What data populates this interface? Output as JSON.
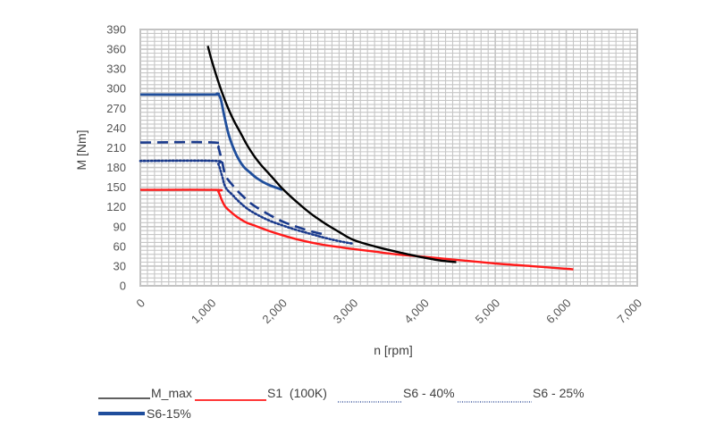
{
  "chart_data": {
    "type": "line",
    "title": "",
    "xlabel": "n [rpm]",
    "ylabel": "M [Nm]",
    "xlim": [
      0,
      7000
    ],
    "ylim": [
      0,
      390
    ],
    "x_ticks": [
      "0",
      "1,000",
      "2,000",
      "3,000",
      "4,000",
      "5,000",
      "6,000",
      "7,000"
    ],
    "y_ticks": [
      "0",
      "30",
      "60",
      "90",
      "120",
      "150",
      "180",
      "210",
      "240",
      "270",
      "300",
      "330",
      "360",
      "390"
    ],
    "grid": true,
    "legend_position": "bottom",
    "series": [
      {
        "name": "M_max",
        "color": "#000000",
        "style": "solid",
        "x": [
          950,
          1000,
          1100,
          1200,
          1300,
          1400,
          1500,
          1600,
          1700,
          1800,
          1900,
          2000,
          2200,
          2400,
          2600,
          2800,
          3000,
          3300,
          3600,
          3900,
          4200,
          4450
        ],
        "y": [
          365,
          345,
          310,
          280,
          255,
          235,
          215,
          198,
          184,
          172,
          160,
          148,
          128,
          110,
          95,
          82,
          70,
          60,
          52,
          45,
          39,
          36
        ]
      },
      {
        "name": "S1  (100K)",
        "color": "#ff1a1a",
        "style": "solid",
        "x": [
          0,
          1050,
          1100,
          1150,
          1200,
          1300,
          1400,
          1500,
          1600,
          1800,
          2000,
          2200,
          2400,
          2600,
          2800,
          3000,
          3300,
          3600,
          4000,
          4500,
          5000,
          5500,
          6000,
          6100
        ],
        "y": [
          146,
          146,
          143,
          130,
          120,
          110,
          102,
          96,
          92,
          84,
          77,
          71,
          66,
          62,
          59,
          56,
          52,
          48,
          44,
          39,
          34,
          30,
          26,
          25
        ]
      },
      {
        "name": "S6 - 40%",
        "color": "#1a3a8c",
        "style": "dotted",
        "x": [
          0,
          1050,
          1100,
          1150,
          1200,
          1300,
          1400,
          1500,
          1600,
          1800,
          2000,
          2200,
          2400,
          2600,
          2800,
          3000
        ],
        "y": [
          190,
          190,
          185,
          168,
          150,
          138,
          127,
          118,
          111,
          100,
          92,
          85,
          79,
          73,
          68,
          64
        ]
      },
      {
        "name": "S6 - 25%",
        "color": "#1a3a8c",
        "style": "dashed",
        "x": [
          0,
          1050,
          1100,
          1150,
          1200,
          1300,
          1400,
          1500,
          1600,
          1800,
          2000,
          2200,
          2400,
          2600
        ],
        "y": [
          218,
          218,
          210,
          190,
          168,
          153,
          141,
          131,
          122,
          109,
          98,
          90,
          83,
          78
        ]
      },
      {
        "name": "S6-15%",
        "color": "#1f4e9c",
        "style": "solid",
        "x": [
          0,
          1000,
          1080,
          1130,
          1180,
          1250,
          1350,
          1450,
          1550,
          1650,
          1800,
          2000
        ],
        "y": [
          291,
          291,
          292,
          285,
          260,
          228,
          200,
          182,
          172,
          163,
          154,
          146
        ]
      }
    ]
  }
}
